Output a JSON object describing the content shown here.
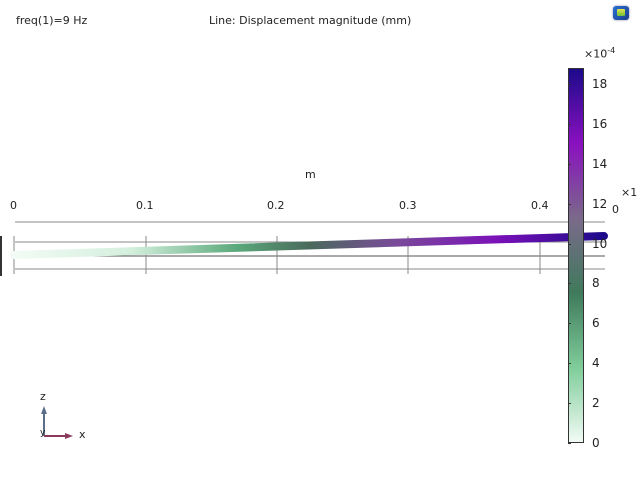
{
  "header": {
    "left_label": "freq(1)=9 Hz",
    "title": "Line: Displacement magnitude (mm)",
    "toolbar_icon": "image-icon"
  },
  "axis": {
    "unit_label": "m",
    "x_ticks": [
      "0",
      "0.1",
      "0.2",
      "0.3",
      "0.4"
    ],
    "secondary_multiplier_partial": "×1",
    "secondary_tick": "0"
  },
  "colorbar": {
    "multiplier": "×10",
    "exponent": "-4",
    "ticks": [
      "0",
      "2",
      "4",
      "6",
      "8",
      "10",
      "12",
      "14",
      "16",
      "18"
    ],
    "range": [
      0,
      0.00188
    ],
    "colors": [
      "#f2fbf5",
      "#7fcc9a",
      "#3f7a5c",
      "#7a6a8a",
      "#8a10c0",
      "#1c0a8a"
    ]
  },
  "triad": {
    "z": "z",
    "x": "x",
    "y": "y",
    "z_color": "#5a6e8a",
    "x_color": "#8a3a5a"
  }
}
